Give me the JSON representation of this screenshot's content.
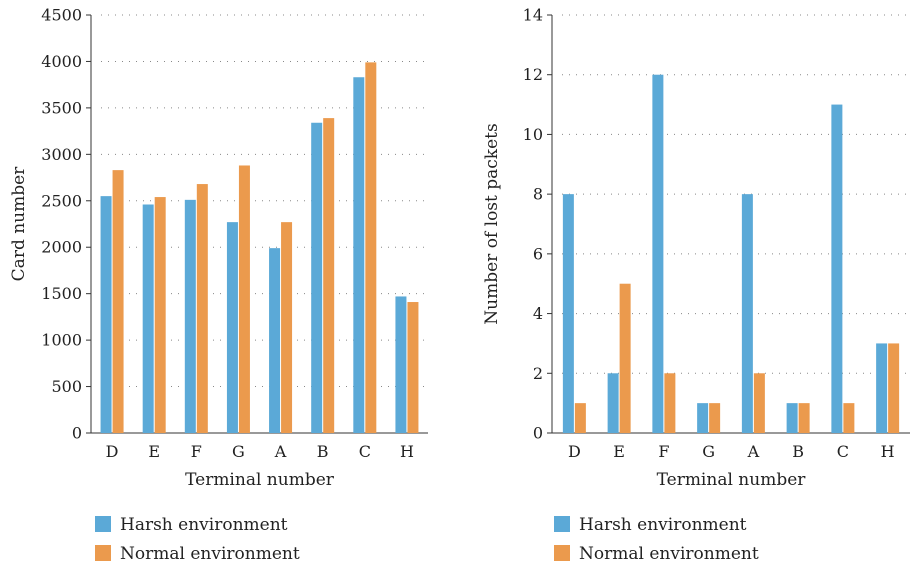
{
  "colors": {
    "harsh": "#5ba9d7",
    "normal": "#eb9a4d"
  },
  "chart_data": [
    {
      "type": "bar",
      "categories": [
        "D",
        "E",
        "F",
        "G",
        "A",
        "B",
        "C",
        "H"
      ],
      "series": [
        {
          "name": "Harsh environment",
          "values": [
            2550,
            2460,
            2510,
            2270,
            1990,
            3340,
            3830,
            1470
          ]
        },
        {
          "name": "Normal environment",
          "values": [
            2830,
            2540,
            2680,
            2880,
            2270,
            3390,
            3990,
            1410
          ]
        }
      ],
      "xlabel": "Terminal number",
      "ylabel": "Card number",
      "ylim": [
        0,
        4500
      ],
      "yticks": [
        0,
        500,
        1000,
        1500,
        2000,
        2500,
        3000,
        3500,
        4000,
        4500
      ],
      "grid": "horizontal dotted",
      "legend": "bottom"
    },
    {
      "type": "bar",
      "categories": [
        "D",
        "E",
        "F",
        "G",
        "A",
        "B",
        "C",
        "H"
      ],
      "series": [
        {
          "name": "Harsh environment",
          "values": [
            8,
            2,
            12,
            1,
            8,
            1,
            11,
            3
          ]
        },
        {
          "name": "Normal environment",
          "values": [
            1,
            5,
            2,
            1,
            2,
            1,
            1,
            3
          ]
        }
      ],
      "xlabel": "Terminal number",
      "ylabel": "Number of lost packets",
      "ylim": [
        0,
        14
      ],
      "yticks": [
        0,
        2,
        4,
        6,
        8,
        10,
        12,
        14
      ],
      "grid": "horizontal dotted",
      "legend": "bottom"
    }
  ]
}
